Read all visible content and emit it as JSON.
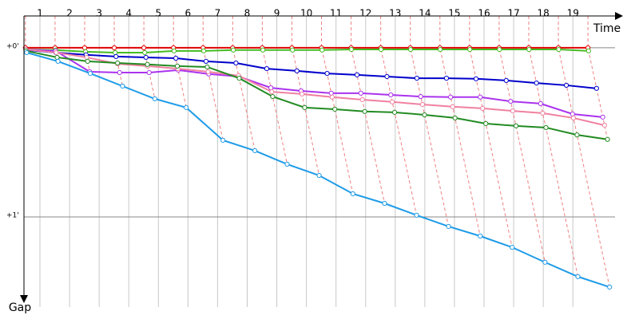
{
  "chart_data": {
    "type": "line",
    "x_label": "Time",
    "y_label": "Gap",
    "xlim": [
      0.46,
      20.64
    ],
    "ylim": [
      -11.3,
      93.4
    ],
    "xticks": [
      1,
      2,
      3,
      4,
      5,
      6,
      7,
      8,
      9,
      10,
      11,
      12,
      13,
      14,
      15,
      16,
      17,
      18,
      19
    ],
    "yticks": [
      {
        "value": 0,
        "label": "+0'"
      },
      {
        "value": 60,
        "label": "+1'"
      }
    ],
    "grid": true,
    "series": [
      {
        "color": "#e00000",
        "x": [
          0.51,
          1.51,
          2.51,
          3.51,
          4.51,
          5.51,
          6.51,
          7.51,
          8.51,
          9.51,
          10.51,
          11.51,
          12.51,
          13.51,
          14.51,
          15.51,
          16.51,
          17.51,
          18.51,
          19.51
        ],
        "values": [
          0,
          0,
          0,
          0,
          0,
          0,
          0,
          0,
          0,
          0,
          0,
          0,
          0,
          0,
          0,
          0,
          0,
          0,
          0,
          0
        ]
      },
      {
        "color": "#44bb22",
        "x": [
          0.52,
          1.53,
          2.54,
          3.54,
          4.54,
          5.53,
          6.53,
          7.53,
          8.53,
          9.53,
          10.53,
          11.52,
          12.52,
          13.52,
          14.52,
          15.52,
          16.52,
          17.52,
          18.52,
          19.53
        ],
        "values": [
          0.6,
          0.8,
          1.4,
          1.7,
          1.7,
          1.1,
          1.1,
          0.8,
          0.8,
          0.8,
          0.8,
          0.6,
          0.6,
          0.6,
          0.6,
          0.6,
          0.6,
          0.6,
          0.6,
          1.1
        ]
      },
      {
        "color": "#0000cc",
        "x": [
          0.53,
          1.54,
          2.56,
          3.57,
          4.58,
          5.59,
          6.61,
          7.62,
          8.66,
          9.68,
          10.7,
          11.71,
          12.72,
          13.73,
          14.73,
          15.73,
          16.75,
          17.77,
          18.78,
          19.8
        ],
        "values": [
          0.8,
          1.7,
          2.5,
          3.1,
          3.4,
          3.7,
          4.8,
          5.4,
          7.4,
          8.2,
          9.1,
          9.6,
          10.2,
          10.8,
          10.8,
          11.0,
          11.6,
          12.5,
          13.3,
          14.4
        ]
      },
      {
        "color": "#aa33ee",
        "x": [
          0.52,
          1.53,
          2.68,
          3.69,
          4.69,
          5.67,
          6.7,
          7.72,
          8.8,
          9.82,
          10.84,
          11.84,
          12.85,
          13.86,
          14.87,
          15.87,
          16.9,
          17.91,
          18.99,
          20.01
        ],
        "values": [
          0.6,
          1.1,
          8.5,
          8.8,
          8.8,
          7.9,
          9.3,
          10.2,
          14.2,
          15.3,
          16.1,
          16.1,
          16.7,
          17.3,
          17.5,
          17.5,
          19.0,
          19.8,
          23.5,
          24.6
        ]
      },
      {
        "color": "#f080a0",
        "x": [
          0.52,
          1.55,
          2.58,
          3.63,
          4.64,
          5.66,
          6.68,
          7.71,
          8.83,
          9.85,
          10.87,
          11.89,
          12.9,
          13.92,
          14.94,
          15.95,
          16.97,
          17.98,
          19.02,
          20.07
        ],
        "values": [
          0.6,
          1.7,
          3.4,
          5.7,
          6.5,
          7.4,
          8.5,
          9.9,
          15.6,
          16.4,
          17.5,
          18.4,
          19.2,
          20.1,
          20.9,
          21.5,
          22.4,
          23.2,
          24.9,
          27.5
        ]
      },
      {
        "color": "#228b22",
        "x": [
          0.53,
          1.58,
          2.61,
          3.62,
          4.63,
          5.64,
          6.65,
          7.73,
          8.86,
          9.94,
          10.96,
          11.97,
          12.98,
          13.99,
          15.02,
          16.06,
          17.08,
          18.09,
          19.14,
          20.17
        ],
        "values": [
          1.1,
          3.4,
          4.8,
          5.4,
          5.9,
          6.5,
          6.8,
          10.8,
          17.3,
          21.2,
          21.8,
          22.6,
          22.9,
          23.8,
          24.9,
          26.9,
          27.7,
          28.3,
          30.9,
          32.5
        ]
      },
      {
        "color": "#1e9be8",
        "x": [
          0.55,
          1.61,
          2.7,
          3.79,
          4.88,
          5.94,
          7.18,
          8.26,
          9.35,
          10.43,
          11.57,
          12.64,
          13.72,
          14.8,
          15.87,
          16.95,
          18.06,
          19.17,
          20.24
        ],
        "values": [
          1.7,
          4.8,
          9.1,
          13.6,
          18.1,
          21.2,
          32.8,
          36.5,
          41.3,
          45.3,
          51.8,
          55.2,
          59.4,
          63.4,
          66.8,
          70.8,
          76.1,
          81.2,
          84.9
        ]
      }
    ]
  }
}
